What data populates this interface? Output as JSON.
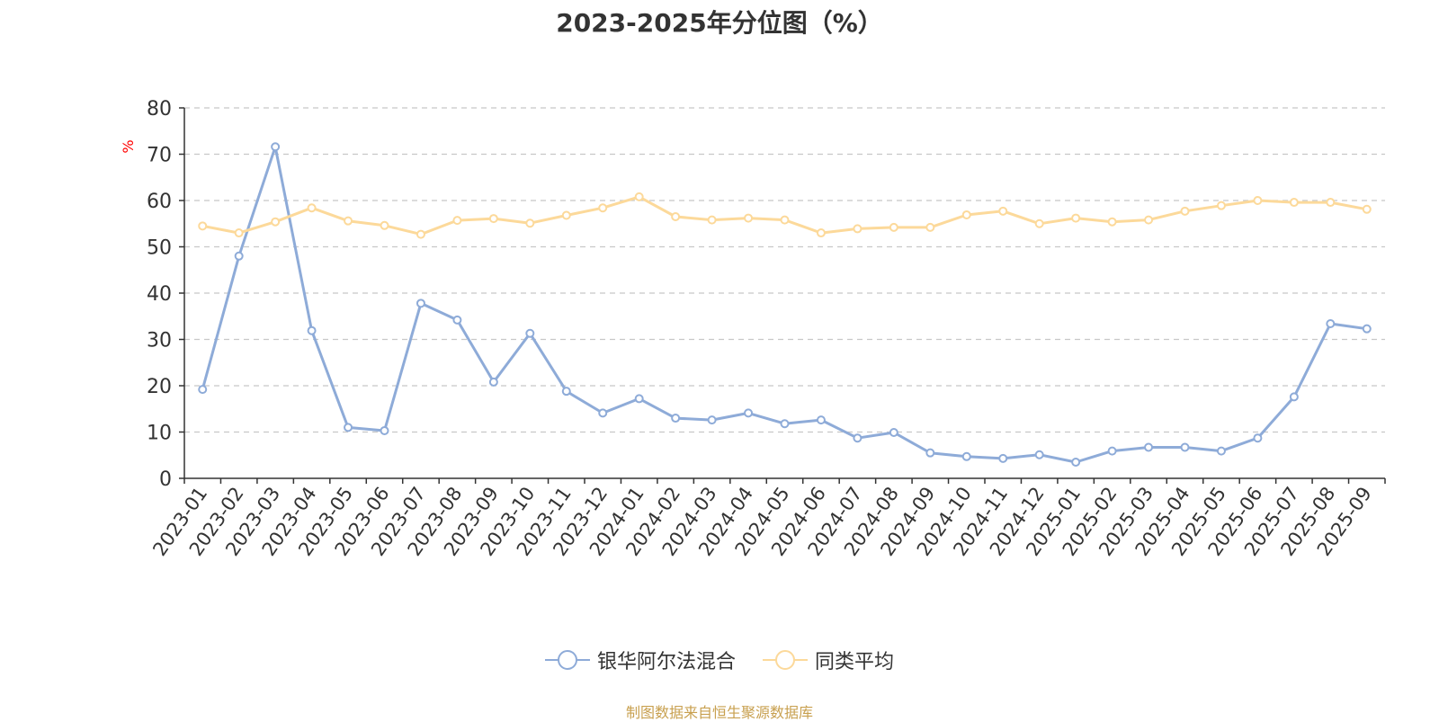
{
  "chart_data": {
    "type": "line",
    "title": "2023-2025年分位图（%）",
    "ylabel": "%",
    "xlabel": "",
    "ylim": [
      0,
      80
    ],
    "yticks": [
      0,
      10,
      20,
      30,
      40,
      50,
      60,
      70,
      80
    ],
    "grid": true,
    "legend_position": "bottom-center",
    "categories": [
      "2023-01",
      "2023-02",
      "2023-03",
      "2023-04",
      "2023-05",
      "2023-06",
      "2023-07",
      "2023-08",
      "2023-09",
      "2023-10",
      "2023-11",
      "2023-12",
      "2024-01",
      "2024-02",
      "2024-03",
      "2024-04",
      "2024-05",
      "2024-06",
      "2024-07",
      "2024-08",
      "2024-09",
      "2024-10",
      "2024-11",
      "2024-12",
      "2025-01",
      "2025-02",
      "2025-03",
      "2025-04",
      "2025-05",
      "2025-06",
      "2025-07",
      "2025-08",
      "2025-09"
    ],
    "series": [
      {
        "name": "银华阿尔法混合",
        "color": "#8eabd8",
        "values": [
          19.2,
          48.0,
          71.6,
          31.9,
          11.0,
          10.3,
          37.8,
          34.2,
          20.8,
          31.3,
          18.8,
          14.1,
          17.2,
          13.0,
          12.6,
          14.1,
          11.8,
          12.6,
          8.7,
          9.9,
          5.5,
          4.7,
          4.3,
          5.1,
          3.5,
          5.9,
          6.7,
          6.7,
          5.9,
          8.7,
          17.6,
          33.4,
          32.3
        ]
      },
      {
        "name": "同类平均",
        "color": "#fcd99a",
        "values": [
          54.5,
          53.0,
          55.4,
          58.4,
          55.6,
          54.6,
          52.7,
          55.7,
          56.1,
          55.1,
          56.8,
          58.4,
          60.8,
          56.5,
          55.8,
          56.2,
          55.8,
          53.0,
          53.9,
          54.2,
          54.2,
          56.9,
          57.7,
          55.0,
          56.2,
          55.4,
          55.8,
          57.7,
          58.9,
          60.0,
          59.6,
          59.6,
          58.1
        ]
      }
    ]
  },
  "source_note": "制图数据来自恒生聚源数据库"
}
